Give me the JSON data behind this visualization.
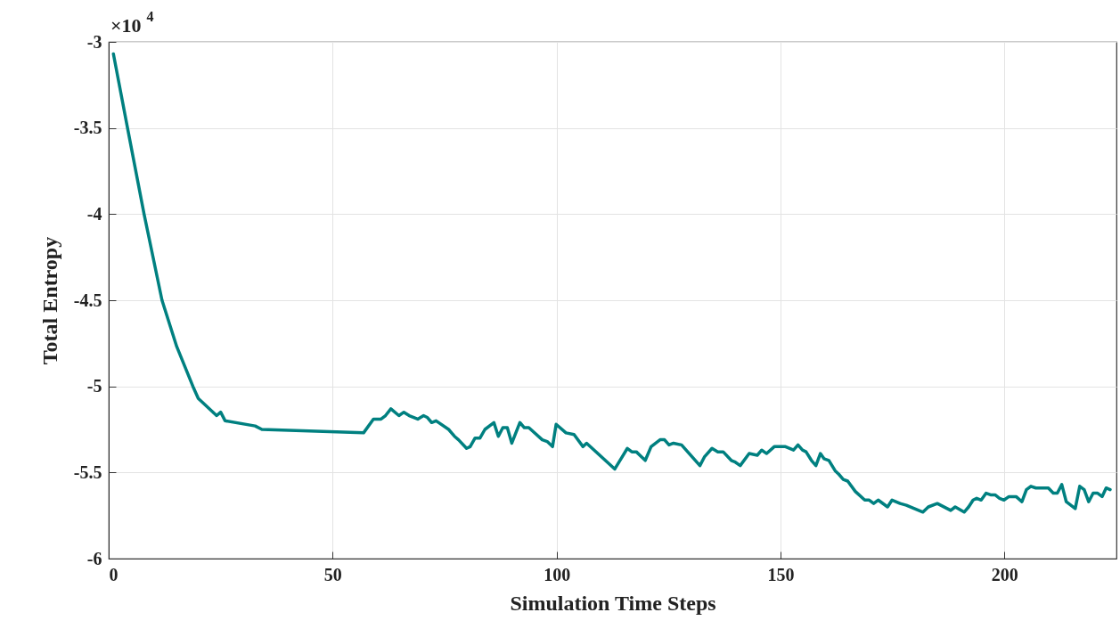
{
  "chart_data": {
    "type": "line",
    "xlabel": "Simulation Time Steps",
    "ylabel": "Total Entropy",
    "annotations": [
      "×10$^{4}$"
    ],
    "xlim": [
      0,
      225
    ],
    "xticks": [
      0,
      50,
      100,
      150,
      200
    ],
    "ylim": [
      -6,
      -3
    ],
    "yticks": [
      -6,
      -5.5,
      -5,
      -4.5,
      -4,
      -3.5,
      -3
    ],
    "grid": true,
    "line_style": "solid",
    "marker": "none",
    "x": [
      1.05,
      4.2,
      7.9,
      11.9,
      15.2,
      18.8,
      20.0,
      24.1,
      25.0,
      26.0,
      32.7,
      34.2,
      56.9,
      59.1,
      60.8,
      61.8,
      63.0,
      64.8,
      65.9,
      67.1,
      69.0,
      70.3,
      71.1,
      72.1,
      73.1,
      75.9,
      77.2,
      78.1,
      79.9,
      80.7,
      81.8,
      82.9,
      84.0,
      86.0,
      87.0,
      88.0,
      89.0,
      90.0,
      91.8,
      92.8,
      93.8,
      96.8,
      97.9,
      99.1,
      99.9,
      102.1,
      103.9,
      105.9,
      106.7,
      113.0,
      115.8,
      116.8,
      117.8,
      119.8,
      121.1,
      123.1,
      124.1,
      125.1,
      126.1,
      127.9,
      132.0,
      133.0,
      134.7,
      136.0,
      137.2,
      139.0,
      139.9,
      141.0,
      143.0,
      144.8,
      145.8,
      146.9,
      148.6,
      151.1,
      152.9,
      153.9,
      154.9,
      155.7,
      156.9,
      157.9,
      158.9,
      159.7,
      160.8,
      162.2,
      163.0,
      164.0,
      165.0,
      166.7,
      168.8,
      169.8,
      170.8,
      171.8,
      173.9,
      174.9,
      176.7,
      178.1,
      181.8,
      183.0,
      185.0,
      188.0,
      189.0,
      191.0,
      192.0,
      193.0,
      193.8,
      194.8,
      195.9,
      196.9,
      197.9,
      198.9,
      199.9,
      201.0,
      202.6,
      203.9,
      204.9,
      205.9,
      207.0,
      209.8,
      210.9,
      211.8,
      212.8,
      213.8,
      215.8,
      216.8,
      217.8,
      218.8,
      219.8,
      220.8,
      221.8,
      222.7,
      223.6
    ],
    "series": [
      {
        "color": "#008080",
        "values": [
          -3.07,
          -3.5,
          -4.0,
          -4.5,
          -4.77,
          -5.0,
          -5.07,
          -5.17,
          -5.15,
          -5.2,
          -5.23,
          -5.25,
          -5.27,
          -5.19,
          -5.19,
          -5.17,
          -5.13,
          -5.17,
          -5.15,
          -5.17,
          -5.19,
          -5.17,
          -5.18,
          -5.21,
          -5.2,
          -5.25,
          -5.29,
          -5.31,
          -5.36,
          -5.35,
          -5.3,
          -5.3,
          -5.25,
          -5.21,
          -5.29,
          -5.24,
          -5.24,
          -5.33,
          -5.21,
          -5.24,
          -5.24,
          -5.31,
          -5.32,
          -5.35,
          -5.22,
          -5.27,
          -5.28,
          -5.35,
          -5.33,
          -5.48,
          -5.36,
          -5.38,
          -5.38,
          -5.43,
          -5.35,
          -5.31,
          -5.31,
          -5.34,
          -5.33,
          -5.34,
          -5.46,
          -5.41,
          -5.36,
          -5.38,
          -5.38,
          -5.43,
          -5.44,
          -5.46,
          -5.39,
          -5.4,
          -5.37,
          -5.39,
          -5.35,
          -5.35,
          -5.37,
          -5.34,
          -5.37,
          -5.38,
          -5.43,
          -5.46,
          -5.39,
          -5.42,
          -5.43,
          -5.49,
          -5.51,
          -5.54,
          -5.55,
          -5.61,
          -5.66,
          -5.66,
          -5.68,
          -5.66,
          -5.7,
          -5.66,
          -5.68,
          -5.69,
          -5.73,
          -5.7,
          -5.68,
          -5.72,
          -5.7,
          -5.73,
          -5.7,
          -5.66,
          -5.65,
          -5.66,
          -5.62,
          -5.63,
          -5.63,
          -5.65,
          -5.66,
          -5.64,
          -5.64,
          -5.67,
          -5.6,
          -5.58,
          -5.59,
          -5.59,
          -5.62,
          -5.62,
          -5.57,
          -5.67,
          -5.71,
          -5.58,
          -5.6,
          -5.67,
          -5.62,
          -5.62,
          -5.64,
          -5.59,
          -5.6
        ]
      }
    ]
  }
}
